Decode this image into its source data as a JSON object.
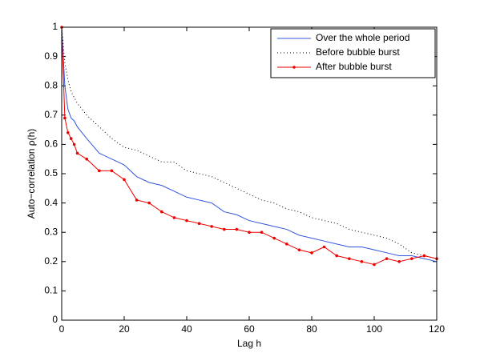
{
  "chart_data": {
    "type": "line",
    "xlabel": "Lag h",
    "ylabel": "Auto−correlation ρ(h)",
    "x": [
      0,
      1,
      2,
      3,
      4,
      5,
      8,
      12,
      16,
      20,
      24,
      28,
      32,
      36,
      40,
      44,
      48,
      52,
      56,
      60,
      64,
      68,
      72,
      76,
      80,
      84,
      88,
      92,
      96,
      100,
      104,
      108,
      112,
      116,
      120
    ],
    "series": [
      {
        "name": "Over the whole period",
        "color": "#3355dd",
        "line_style": "solid",
        "marker": false,
        "values": [
          1,
          0.8,
          0.72,
          0.69,
          0.68,
          0.66,
          0.62,
          0.57,
          0.55,
          0.53,
          0.49,
          0.47,
          0.46,
          0.44,
          0.42,
          0.41,
          0.4,
          0.37,
          0.36,
          0.34,
          0.33,
          0.32,
          0.31,
          0.29,
          0.28,
          0.27,
          0.26,
          0.25,
          0.25,
          0.24,
          0.23,
          0.22,
          0.22,
          0.21,
          0.2
        ]
      },
      {
        "name": "Before bubble burst",
        "color": "#000000",
        "line_style": "dotted",
        "marker": false,
        "values": [
          1,
          0.88,
          0.82,
          0.78,
          0.76,
          0.74,
          0.7,
          0.66,
          0.62,
          0.59,
          0.58,
          0.56,
          0.54,
          0.54,
          0.51,
          0.5,
          0.49,
          0.47,
          0.45,
          0.43,
          0.41,
          0.4,
          0.38,
          0.37,
          0.35,
          0.34,
          0.33,
          0.31,
          0.3,
          0.29,
          0.28,
          0.26,
          0.23,
          0.22,
          0.21
        ]
      },
      {
        "name": "After bubble burst",
        "color": "#ee0000",
        "line_style": "solid",
        "marker": true,
        "values": [
          1,
          0.69,
          0.64,
          0.62,
          0.6,
          0.57,
          0.55,
          0.51,
          0.51,
          0.48,
          0.41,
          0.4,
          0.37,
          0.35,
          0.34,
          0.33,
          0.32,
          0.31,
          0.31,
          0.3,
          0.3,
          0.28,
          0.26,
          0.24,
          0.23,
          0.25,
          0.22,
          0.21,
          0.2,
          0.19,
          0.21,
          0.2,
          0.21,
          0.22,
          0.21
        ]
      }
    ],
    "xlim": [
      0,
      120
    ],
    "xticks": [
      0,
      20,
      40,
      60,
      80,
      100,
      120
    ],
    "ylim": [
      0,
      1
    ],
    "yticks": [
      0,
      0.1,
      0.2,
      0.3,
      0.4,
      0.5,
      0.6,
      0.7,
      0.8,
      0.9,
      1
    ],
    "grid": false,
    "legend": "upper right"
  }
}
